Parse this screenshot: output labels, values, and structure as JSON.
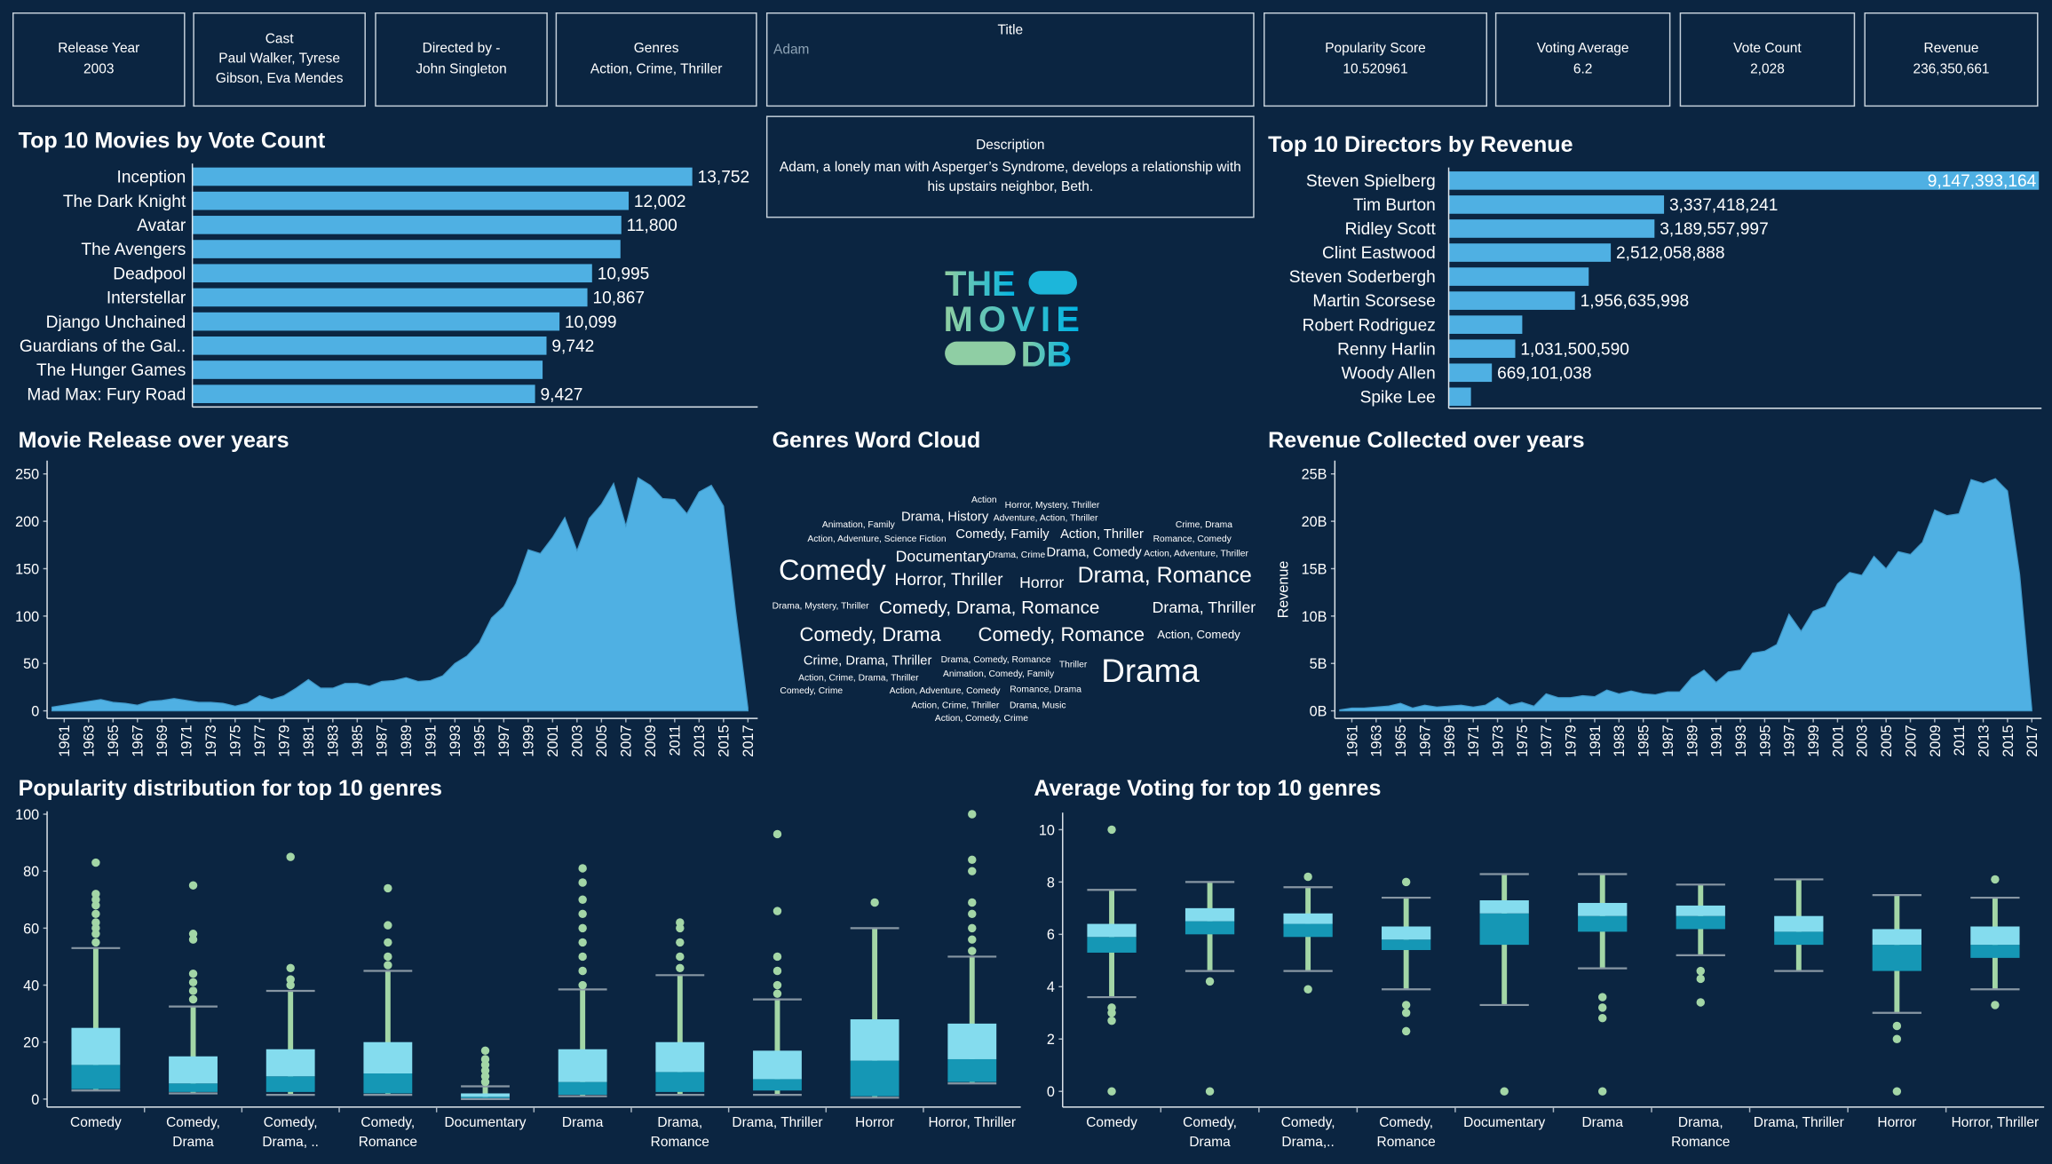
{
  "cards": [
    {
      "label": "Release Year",
      "value": "2003"
    },
    {
      "label": "Cast",
      "value": "Paul Walker, Tyrese Gibson, Eva Mendes"
    },
    {
      "label": "Directed by -",
      "value": "John Singleton"
    },
    {
      "label": "Genres",
      "value": "Action, Crime, Thriller"
    },
    {
      "label": "Popularity Score",
      "value": "10.520961"
    },
    {
      "label": "Voting Average",
      "value": "6.2"
    },
    {
      "label": "Vote Count",
      "value": "2,028"
    },
    {
      "label": "Revenue",
      "value": "236,350,661"
    }
  ],
  "title_box": {
    "label": "Title",
    "value": "Adam"
  },
  "description": {
    "label": "Description",
    "text": "Adam, a lonely man with Asperger’s Syndrome, develops a relationship with his upstairs neighbor, Beth."
  },
  "logo": {
    "lines": [
      "THE",
      "MOVIE",
      "DB"
    ]
  },
  "chart_data": [
    {
      "type": "bar",
      "title": "Top 10 Movies by Vote Count",
      "color": "#4fb0e3",
      "categories": [
        "Inception",
        "The Dark Knight",
        "Avatar",
        "The Avengers",
        "Deadpool",
        "Interstellar",
        "Django Unchained",
        "Guardians of the Gal..",
        "The Hunger Games",
        "Mad Max: Fury Road"
      ],
      "values": [
        13752,
        12002,
        11800,
        11776,
        10995,
        10867,
        10099,
        9742,
        9634,
        9427
      ],
      "value_labels": [
        "13,752",
        "12,002",
        "11,800",
        null,
        "10,995",
        "10,867",
        "10,099",
        "9,742",
        null,
        "9,427"
      ]
    },
    {
      "type": "bar",
      "title": "Top 10 Directors by Revenue",
      "color": "#4fb0e3",
      "categories": [
        "Steven Spielberg",
        "Tim Burton",
        "Ridley Scott",
        "Clint Eastwood",
        "Steven Soderbergh",
        "Martin Scorsese",
        "Robert Rodriguez",
        "Renny Harlin",
        "Woody Allen",
        "Spike Lee"
      ],
      "values": [
        9147393164,
        3337418241,
        3189557997,
        2512058888,
        2170000000,
        1956635998,
        1140000000,
        1031500590,
        669101038,
        345000000
      ],
      "value_labels": [
        "9,147,393,164",
        "3,337,418,241",
        "3,189,557,997",
        "2,512,058,888",
        null,
        "1,956,635,998",
        null,
        "1,031,500,590",
        "669,101,038",
        null
      ]
    },
    {
      "type": "area",
      "title": "Movie Release over years",
      "color": "#4fb0e3",
      "x": [
        1960,
        1961,
        1962,
        1963,
        1964,
        1965,
        1966,
        1967,
        1968,
        1969,
        1970,
        1971,
        1972,
        1973,
        1974,
        1975,
        1976,
        1977,
        1978,
        1979,
        1980,
        1981,
        1982,
        1983,
        1984,
        1985,
        1986,
        1987,
        1988,
        1989,
        1990,
        1991,
        1992,
        1993,
        1994,
        1995,
        1996,
        1997,
        1998,
        1999,
        2000,
        2001,
        2002,
        2003,
        2004,
        2005,
        2006,
        2007,
        2008,
        2009,
        2010,
        2011,
        2012,
        2013,
        2014,
        2015,
        2016,
        2017
      ],
      "values": [
        4,
        6,
        8,
        10,
        12,
        9,
        8,
        6,
        10,
        11,
        13,
        11,
        9,
        9,
        8,
        5,
        8,
        16,
        12,
        16,
        24,
        33,
        24,
        24,
        29,
        29,
        26,
        31,
        32,
        35,
        31,
        32,
        37,
        50,
        58,
        72,
        98,
        110,
        134,
        170,
        166,
        183,
        204,
        169,
        203,
        218,
        240,
        195,
        246,
        238,
        224,
        223,
        208,
        231,
        238,
        216,
        104,
        3
      ],
      "xlim": [
        1959.6,
        2017.8
      ],
      "xticks": [
        1961,
        1963,
        1965,
        1967,
        1969,
        1971,
        1973,
        1975,
        1977,
        1979,
        1981,
        1983,
        1985,
        1987,
        1989,
        1991,
        1993,
        1995,
        1997,
        1999,
        2001,
        2003,
        2005,
        2007,
        2009,
        2011,
        2013,
        2015,
        2017
      ],
      "ylim": [
        -8,
        264
      ],
      "yticks": [
        0,
        50,
        100,
        150,
        200,
        250
      ]
    },
    {
      "type": "wordcloud",
      "title": "Genres Word Cloud",
      "color": "#ffffff",
      "categories": [
        "Action",
        "Horror, Mystery, Thriller",
        "Animation, Family",
        "Drama, History",
        "Adventure, Action, Thriller",
        "Crime, Drama",
        "Action, Adventure, Science Fiction",
        "Comedy, Family",
        "Action, Thriller",
        "Romance, Comedy",
        "Documentary",
        "Drama, Crime",
        "Drama, Comedy",
        "Action, Adventure, Thriller",
        "Comedy",
        "Horror, Thriller",
        "Horror",
        "Drama, Romance",
        "Drama, Mystery, Thriller",
        "Comedy, Drama, Romance",
        "Drama, Thriller",
        "Comedy, Drama",
        "Comedy, Romance",
        "Action, Comedy",
        "Crime, Drama, Thriller",
        "Drama, Comedy, Romance",
        "Thriller",
        "Drama",
        "Action, Crime, Drama, Thriller",
        "Animation, Comedy, Family",
        "Comedy, Crime",
        "Action, Adventure, Comedy",
        "Romance, Drama",
        "Action, Crime, Thriller",
        "Drama, Music",
        "Action, Comedy, Crime"
      ],
      "values": [
        70,
        70,
        70,
        100,
        70,
        70,
        70,
        100,
        100,
        70,
        120,
        70,
        100,
        70,
        220,
        130,
        120,
        170,
        70,
        140,
        120,
        150,
        150,
        90,
        100,
        70,
        70,
        250,
        70,
        70,
        70,
        70,
        70,
        70,
        70,
        70
      ]
    },
    {
      "type": "area",
      "title": "Revenue Collected over years",
      "color": "#4fb0e3",
      "y_label": "Revenue",
      "x": [
        1960,
        1961,
        1962,
        1963,
        1964,
        1965,
        1966,
        1967,
        1968,
        1969,
        1970,
        1971,
        1972,
        1973,
        1974,
        1975,
        1976,
        1977,
        1978,
        1979,
        1980,
        1981,
        1982,
        1983,
        1984,
        1985,
        1986,
        1987,
        1988,
        1989,
        1990,
        1991,
        1992,
        1993,
        1994,
        1995,
        1996,
        1997,
        1998,
        1999,
        2000,
        2001,
        2002,
        2003,
        2004,
        2005,
        2006,
        2007,
        2008,
        2009,
        2010,
        2011,
        2012,
        2013,
        2014,
        2015,
        2016,
        2017
      ],
      "values": [
        0.1,
        0.3,
        0.3,
        0.4,
        0.5,
        0.8,
        0.3,
        0.6,
        0.4,
        0.5,
        0.6,
        0.4,
        0.6,
        1.4,
        0.6,
        0.9,
        0.5,
        1.8,
        1.4,
        1.4,
        1.6,
        1.5,
        2.2,
        1.8,
        2.1,
        1.8,
        1.7,
        2.0,
        2.0,
        3.5,
        4.3,
        3.0,
        4.1,
        4.3,
        6.1,
        6.3,
        7.0,
        10.2,
        8.4,
        10.5,
        11.0,
        13.4,
        14.6,
        14.3,
        16.3,
        15.0,
        16.8,
        16.5,
        17.8,
        21.2,
        20.6,
        20.8,
        24.4,
        24.0,
        24.5,
        23.2,
        14.4,
        0.2
      ],
      "xlim": [
        1959.6,
        2017.8
      ],
      "xticks": [
        1961,
        1963,
        1965,
        1967,
        1969,
        1971,
        1973,
        1975,
        1977,
        1979,
        1981,
        1983,
        1985,
        1987,
        1989,
        1991,
        1993,
        1995,
        1997,
        1999,
        2001,
        2003,
        2005,
        2007,
        2009,
        2011,
        2013,
        2015,
        2017
      ],
      "ylim": [
        -0.8,
        26.4
      ],
      "yticks": [
        {
          "value": 0,
          "label": "0B"
        },
        {
          "value": 5,
          "label": "5B"
        },
        {
          "value": 10,
          "label": "10B"
        },
        {
          "value": 15,
          "label": "15B"
        },
        {
          "value": 20,
          "label": "20B"
        },
        {
          "value": 25,
          "label": "25B"
        }
      ]
    },
    {
      "type": "box",
      "title": "Popularity distribution for top 10 genres",
      "box_colors": {
        "lower": "#1597b5",
        "upper": "#84dcee",
        "points": "#a3d6a6",
        "whisker": "#8796a3"
      },
      "categories": [
        "Comedy",
        "Comedy, Drama",
        "Comedy, Drama, ..",
        "Comedy, Romance",
        "Documentary",
        "Drama",
        "Drama, Romance",
        "Drama, Thriller",
        "Horror",
        "Horror, Thriller"
      ],
      "boxes": [
        {
          "low": 3,
          "q1": 3.5,
          "median": 12,
          "q3": 25,
          "high": 53,
          "outliers": [
            55,
            58,
            60,
            62,
            65,
            68,
            70,
            72,
            83
          ]
        },
        {
          "low": 2,
          "q1": 2.5,
          "median": 5.5,
          "q3": 15,
          "high": 32.5,
          "outliers": [
            35,
            38,
            41,
            44,
            56,
            58,
            75
          ]
        },
        {
          "low": 1.5,
          "q1": 2.5,
          "median": 8,
          "q3": 17.5,
          "high": 38,
          "outliers": [
            40,
            42,
            46,
            85
          ]
        },
        {
          "low": 1.5,
          "q1": 2,
          "median": 9,
          "q3": 20,
          "high": 45,
          "outliers": [
            47,
            50,
            55,
            61,
            74
          ]
        },
        {
          "low": 0,
          "q1": 0.3,
          "median": 0.8,
          "q3": 2,
          "high": 4.5,
          "outliers": [
            6,
            8,
            10,
            12,
            14,
            17
          ]
        },
        {
          "low": 1,
          "q1": 1.5,
          "median": 6,
          "q3": 17.5,
          "high": 38.5,
          "outliers": [
            40,
            45,
            50,
            55,
            60,
            65,
            70,
            76,
            81
          ]
        },
        {
          "low": 1.5,
          "q1": 2.5,
          "median": 9.5,
          "q3": 20,
          "high": 43.5,
          "outliers": [
            46,
            50,
            55,
            60,
            62
          ]
        },
        {
          "low": 1.5,
          "q1": 3,
          "median": 7,
          "q3": 17,
          "high": 35,
          "outliers": [
            37,
            40,
            45,
            50,
            66,
            93
          ]
        },
        {
          "low": 0.5,
          "q1": 1,
          "median": 13.5,
          "q3": 28,
          "high": 60,
          "outliers": [
            69
          ]
        },
        {
          "low": 5.5,
          "q1": 6,
          "median": 14,
          "q3": 26.5,
          "high": 50,
          "outliers": [
            52,
            56,
            60,
            65,
            69,
            80,
            84,
            100
          ]
        }
      ],
      "ylim": [
        -2.8,
        101
      ],
      "yticks": [
        0,
        20,
        40,
        60,
        80,
        100
      ]
    },
    {
      "type": "box",
      "title": "Average Voting for top 10 genres",
      "box_colors": {
        "lower": "#1597b5",
        "upper": "#84dcee",
        "points": "#a3d6a6",
        "whisker": "#8796a3"
      },
      "categories": [
        "Comedy",
        "Comedy, Drama",
        "Comedy, Drama,..",
        "Comedy, Romance",
        "Documentary",
        "Drama",
        "Drama, Romance",
        "Drama, Thriller",
        "Horror",
        "Horror, Thriller"
      ],
      "boxes": [
        {
          "low": 3.6,
          "q1": 5.3,
          "median": 5.9,
          "q3": 6.4,
          "high": 7.7,
          "outliers": [
            0,
            2.7,
            3,
            3.2,
            10
          ]
        },
        {
          "low": 4.6,
          "q1": 6.0,
          "median": 6.5,
          "q3": 7.0,
          "high": 8.0,
          "outliers": [
            0,
            4.2
          ]
        },
        {
          "low": 4.6,
          "q1": 5.9,
          "median": 6.4,
          "q3": 6.8,
          "high": 7.8,
          "outliers": [
            3.9,
            8.2
          ]
        },
        {
          "low": 3.9,
          "q1": 5.4,
          "median": 5.8,
          "q3": 6.3,
          "high": 7.4,
          "outliers": [
            2.3,
            3,
            3.3,
            8
          ]
        },
        {
          "low": 3.3,
          "q1": 5.6,
          "median": 6.8,
          "q3": 7.3,
          "high": 8.3,
          "outliers": [
            0
          ]
        },
        {
          "low": 4.7,
          "q1": 6.1,
          "median": 6.7,
          "q3": 7.2,
          "high": 8.3,
          "outliers": [
            0,
            2.8,
            3.2,
            3.6
          ]
        },
        {
          "low": 5.2,
          "q1": 6.2,
          "median": 6.7,
          "q3": 7.1,
          "high": 7.9,
          "outliers": [
            3.4,
            4.3,
            4.6
          ]
        },
        {
          "low": 4.6,
          "q1": 5.6,
          "median": 6.1,
          "q3": 6.7,
          "high": 8.1,
          "outliers": []
        },
        {
          "low": 3.0,
          "q1": 4.6,
          "median": 5.6,
          "q3": 6.2,
          "high": 7.5,
          "outliers": [
            0,
            2,
            2.5
          ]
        },
        {
          "low": 3.9,
          "q1": 5.1,
          "median": 5.6,
          "q3": 6.3,
          "high": 7.4,
          "outliers": [
            3.3,
            8.1
          ]
        }
      ],
      "ylim": [
        -0.6,
        10.65
      ],
      "yticks": [
        0,
        2,
        4,
        6,
        8,
        10
      ]
    }
  ]
}
